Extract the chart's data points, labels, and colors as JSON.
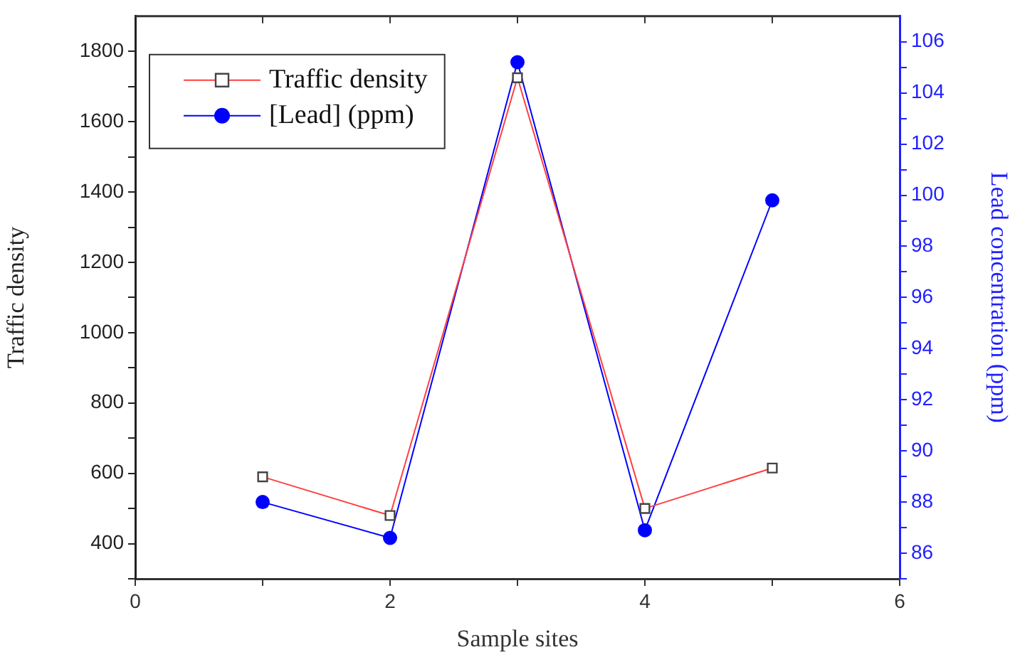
{
  "chart_data": {
    "type": "line",
    "xlabel": "Sample sites",
    "ylabel": "Traffic density",
    "y2label": "Lead concentration (ppm)",
    "x": [
      1,
      2,
      3,
      4,
      5
    ],
    "series": [
      {
        "name": "Traffic density",
        "color": "#ff4040",
        "marker": "square",
        "values": [
          590,
          480,
          1725,
          500,
          615
        ]
      },
      {
        "name": "[Lead] (ppm)",
        "color": "#0000ff",
        "marker": "circle",
        "axis": "y2",
        "values": [
          88.0,
          86.6,
          105.2,
          86.9,
          99.8
        ]
      }
    ],
    "xlim": [
      0,
      6
    ],
    "xticks": [
      0,
      {
        "value": 1,
        "label": null
      },
      2,
      {
        "value": 3,
        "label": null
      },
      4,
      {
        "value": 5,
        "label": null
      },
      6
    ],
    "ylim": [
      300,
      1900
    ],
    "yticks": [
      {
        "value": 300,
        "label": null
      },
      400,
      {
        "value": 500,
        "label": null
      },
      600,
      {
        "value": 700,
        "label": null
      },
      800,
      {
        "value": 900,
        "label": null
      },
      1000,
      {
        "value": 1100,
        "label": null
      },
      1200,
      {
        "value": 1300,
        "label": null
      },
      1400,
      {
        "value": 1500,
        "label": null
      },
      1600,
      {
        "value": 1700,
        "label": null
      },
      1800
    ],
    "y2lim": [
      85,
      107
    ],
    "y2ticks": [
      {
        "value": 85,
        "label": null
      },
      86,
      {
        "value": 87,
        "label": null
      },
      88,
      {
        "value": 89,
        "label": null
      },
      90,
      {
        "value": 91,
        "label": null
      },
      92,
      {
        "value": 93,
        "label": null
      },
      94,
      {
        "value": 95,
        "label": null
      },
      96,
      {
        "value": 97,
        "label": null
      },
      98,
      {
        "value": 99,
        "label": null
      },
      100,
      {
        "value": 101,
        "label": null
      },
      102,
      {
        "value": 103,
        "label": null
      },
      104,
      {
        "value": 105,
        "label": null
      },
      106
    ],
    "grid": false,
    "legend": "top left",
    "line_style": "solid"
  }
}
